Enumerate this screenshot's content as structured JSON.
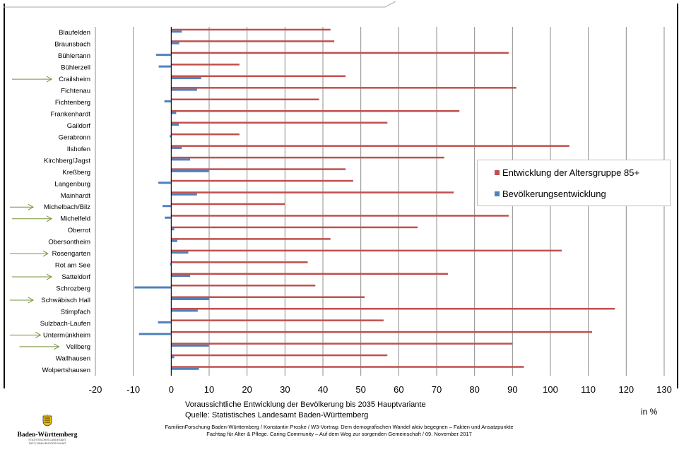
{
  "chart_data": {
    "type": "bar",
    "orientation": "horizontal",
    "categories": [
      "Blaufelden",
      "Braunsbach",
      "Bühlertann",
      "Bühlerzell",
      "Crailsheim",
      "Fichtenau",
      "Fichtenberg",
      "Frankenhardt",
      "Gaildorf",
      "Gerabronn",
      "Ilshofen",
      "Kirchberg/Jagst",
      "Kreßberg",
      "Langenburg",
      "Mainhardt",
      "Michelbach/Bilz",
      "Michelfeld",
      "Oberrot",
      "Obersontheim",
      "Rosengarten",
      "Rot am See",
      "Satteldorf",
      "Schrozberg",
      "Schwäbisch Hall",
      "Stimpfach",
      "Sulzbach-Laufen",
      "Untermünkheim",
      "Vellberg",
      "Wallhausen",
      "Wolpertshausen"
    ],
    "series": [
      {
        "name": "Entwicklung der Altersgruppe 85+",
        "color": "#c0504d",
        "values": [
          42,
          43,
          89,
          18,
          46,
          91,
          39,
          76,
          57,
          18,
          105,
          72,
          46,
          48,
          74.5,
          30,
          89,
          65,
          42,
          103,
          36,
          73,
          38,
          51,
          117,
          56,
          111,
          90,
          57,
          93
        ]
      },
      {
        "name": "Bevölkerungsentwicklung",
        "color": "#4f81bd",
        "values": [
          2.8,
          2.1,
          -4.0,
          -3.3,
          7.9,
          6.8,
          -1.8,
          1.3,
          2.0,
          -0.4,
          2.8,
          5.0,
          9.9,
          -3.4,
          6.8,
          -2.3,
          -1.7,
          0.8,
          1.6,
          4.5,
          -0.3,
          5.0,
          -9.7,
          10.1,
          7.0,
          -3.5,
          -8.5,
          9.9,
          0.8,
          7.3
        ]
      }
    ],
    "highlighted": [
      "Crailsheim",
      "Michelbach/Bilz",
      "Michelfeld",
      "Rosengarten",
      "Satteldorf",
      "Schwäbisch Hall",
      "Untermünkheim",
      "Vellberg"
    ],
    "xlim": [
      -20,
      130
    ],
    "xticks": [
      "-20",
      "-10",
      "0",
      "10",
      "20",
      "30",
      "40",
      "50",
      "60",
      "70",
      "80",
      "90",
      "100",
      "110",
      "120",
      "130"
    ],
    "grid": true,
    "legend_position": "right",
    "arrow_color": "#77933c"
  },
  "caption": {
    "line1": "Voraussichtliche Entwicklung der Bevölkerung bis 2035 Hauptvariante",
    "line2": "Quelle: Statistisches Landesamt Baden-Württemberg"
  },
  "unit_label": "in %",
  "footer": {
    "line1": "FamilienForschung Baden-Württemberg / Konstantin Proske / W3-Vortrag: Dem demografischen Wandel aktiv begegnen – Fakten und Ansatzpunkte",
    "line2": "Fachtag für Alter & Pflege. Caring Community – Auf dem Weg zur sorgenden Gemeinschaft / 09. November 2017"
  },
  "logo": {
    "name": "Baden-Württemberg",
    "sub1": "STATISTISCHES LANDESAMT",
    "sub2": "FAFO FAMILIENFORSCHUNG"
  }
}
